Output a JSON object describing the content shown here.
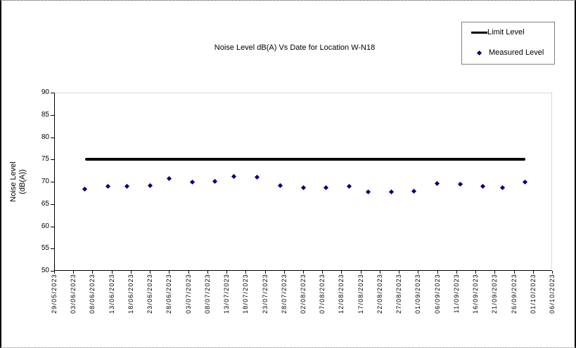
{
  "chart_data": {
    "type": "scatter",
    "title": "Noise Level dB(A) Vs Date for Location W-N18",
    "xlabel": "",
    "ylabel": "Noise Level (dB(A))",
    "ylabel_lines": [
      "Noise Level",
      "(dB(A))"
    ],
    "ylim": [
      50,
      90
    ],
    "xlim": [
      "29/05/2023",
      "06/10/2023"
    ],
    "y_ticks": [
      90,
      85,
      80,
      75,
      70,
      65,
      60,
      55,
      50
    ],
    "x_tick_labels": [
      "29/05/2023",
      "03/06/2023",
      "08/06/2023",
      "13/06/2023",
      "18/06/2023",
      "23/06/2023",
      "28/06/2023",
      "03/07/2023",
      "08/07/2023",
      "13/07/2023",
      "18/07/2023",
      "23/07/2023",
      "28/07/2023",
      "02/08/2023",
      "07/08/2023",
      "12/08/2023",
      "17/08/2023",
      "22/08/2023",
      "27/08/2023",
      "01/09/2023",
      "06/09/2023",
      "11/09/2023",
      "16/09/2023",
      "21/09/2023",
      "26/09/2023",
      "01/10/2023",
      "06/10/2023"
    ],
    "grid": "off",
    "legend_position": "top-right",
    "legend": [
      {
        "label": "Limit Level",
        "marker": "thick-black-line"
      },
      {
        "label": "Measured Level",
        "marker": "navy-diamond"
      }
    ],
    "limit": {
      "name": "Limit Level",
      "value": 75,
      "start_date": "06/06/2023",
      "end_date": "29/09/2023"
    },
    "series": {
      "measured": {
        "name": "Measured Level",
        "points": [
          {
            "date": "06/06/2023",
            "value": 68.4
          },
          {
            "date": "12/06/2023",
            "value": 68.9
          },
          {
            "date": "17/06/2023",
            "value": 69.0
          },
          {
            "date": "23/06/2023",
            "value": 69.2
          },
          {
            "date": "28/06/2023",
            "value": 70.7
          },
          {
            "date": "04/07/2023",
            "value": 69.9
          },
          {
            "date": "10/07/2023",
            "value": 70.1
          },
          {
            "date": "15/07/2023",
            "value": 71.2
          },
          {
            "date": "21/07/2023",
            "value": 71.0
          },
          {
            "date": "27/07/2023",
            "value": 69.1
          },
          {
            "date": "02/08/2023",
            "value": 68.6
          },
          {
            "date": "08/08/2023",
            "value": 68.7
          },
          {
            "date": "14/08/2023",
            "value": 69.0
          },
          {
            "date": "19/08/2023",
            "value": 67.7
          },
          {
            "date": "25/08/2023",
            "value": 67.7
          },
          {
            "date": "31/08/2023",
            "value": 67.9
          },
          {
            "date": "06/09/2023",
            "value": 69.6
          },
          {
            "date": "12/09/2023",
            "value": 69.4
          },
          {
            "date": "18/09/2023",
            "value": 68.9
          },
          {
            "date": "23/09/2023",
            "value": 68.7
          },
          {
            "date": "29/09/2023",
            "value": 69.9
          }
        ]
      }
    },
    "colors": {
      "marker": "#000080",
      "limit_line": "#000000",
      "axis": "#000000",
      "plot_border_dotted": "#b0b0b0",
      "legend_border": "#808080",
      "background": "#ffffff",
      "text": "#000000"
    }
  }
}
